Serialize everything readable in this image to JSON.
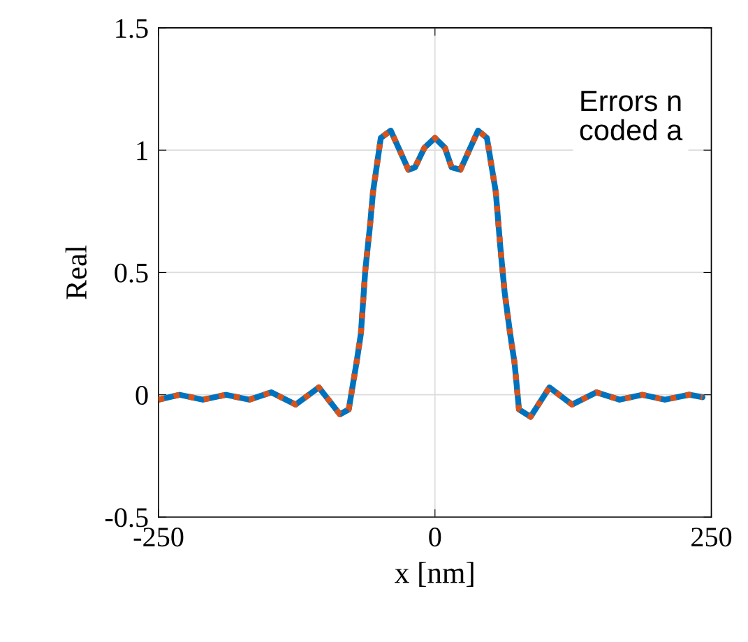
{
  "chart_data": {
    "type": "line",
    "xlabel": "x [nm]",
    "ylabel": "Real",
    "x": [
      -250,
      -231,
      -210,
      -189,
      -168,
      -148,
      -126,
      -105,
      -86,
      -78,
      -71,
      -67,
      -63,
      -59,
      -56,
      -49,
      -40,
      -24,
      -18,
      -9.5,
      0,
      9,
      15,
      23,
      39,
      47,
      55,
      59,
      63,
      68,
      72,
      76,
      86.5,
      103.5,
      124,
      146,
      167,
      187.5,
      208,
      230,
      242
    ],
    "series": [
      {
        "color": "#0072bd",
        "line_style": "solid",
        "values": [
          -0.02,
          0.0,
          -0.02,
          0.0,
          -0.02,
          0.01,
          -0.04,
          0.03,
          -0.08,
          -0.06,
          0.13,
          0.25,
          0.51,
          0.68,
          0.83,
          1.05,
          1.08,
          0.92,
          0.93,
          1.01,
          1.05,
          1.01,
          0.93,
          0.92,
          1.08,
          1.05,
          0.83,
          0.61,
          0.42,
          0.25,
          0.13,
          -0.06,
          -0.09,
          0.03,
          -0.04,
          0.01,
          -0.02,
          0.0,
          -0.02,
          0.0,
          -0.01
        ]
      },
      {
        "color": "#d95319",
        "line_style": "dotted",
        "values": [
          -0.02,
          0.0,
          -0.02,
          0.0,
          -0.02,
          0.01,
          -0.04,
          0.03,
          -0.08,
          -0.06,
          0.13,
          0.25,
          0.51,
          0.68,
          0.83,
          1.05,
          1.08,
          0.92,
          0.93,
          1.01,
          1.05,
          1.01,
          0.93,
          0.92,
          1.08,
          1.05,
          0.83,
          0.61,
          0.42,
          0.25,
          0.13,
          -0.06,
          -0.09,
          0.03,
          -0.04,
          0.01,
          -0.02,
          0.0,
          -0.02,
          0.0,
          -0.01
        ]
      }
    ],
    "xlim": [
      -250,
      250
    ],
    "xticks": [
      -250,
      0,
      250
    ],
    "ylim": [
      -0.5,
      1.5
    ],
    "yticks": [
      -0.5,
      0,
      0.5,
      1,
      1.5
    ],
    "grid": true,
    "annotations": [
      "Errors n\ncoded a"
    ]
  }
}
